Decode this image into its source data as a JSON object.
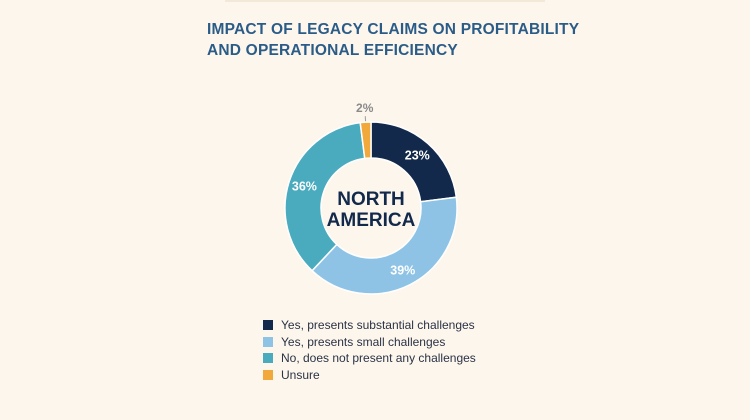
{
  "title": {
    "line1": "IMPACT OF LEGACY CLAIMS ON PROFITABILITY",
    "line2": "AND OPERATIONAL EFFICIENCY"
  },
  "chart_data": {
    "type": "pie",
    "variant": "donut",
    "title": "IMPACT OF LEGACY CLAIMS ON PROFITABILITY AND OPERATIONAL EFFICIENCY",
    "center_label": [
      "NORTH",
      "AMERICA"
    ],
    "categories": [
      "Yes, presents substantial challenges",
      "Yes, presents small challenges",
      "No, does not present any challenges",
      "Unsure"
    ],
    "values": [
      23,
      39,
      36,
      2
    ],
    "labels": [
      "23%",
      "39%",
      "36%",
      "2%"
    ],
    "colors": [
      "#13294b",
      "#8ec3e6",
      "#4aabbf",
      "#f2a93b"
    ],
    "legend_position": "bottom"
  }
}
